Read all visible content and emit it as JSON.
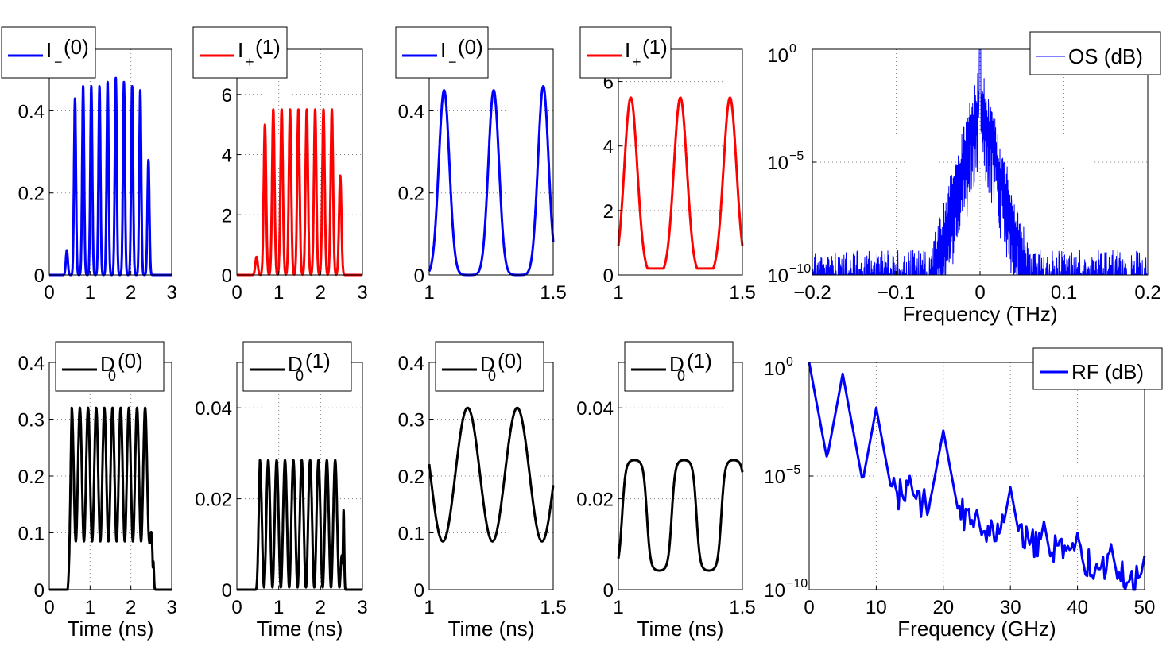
{
  "figure": {
    "background": "#ffffff"
  },
  "chart_data": [
    {
      "id": "p1",
      "type": "line",
      "row": 1,
      "xlabel": "",
      "ylabel": "",
      "xlim": [
        0,
        3
      ],
      "ylim": [
        0,
        0.55
      ],
      "xticks": [
        0,
        1,
        2,
        3
      ],
      "xtick_labels": [
        "0",
        "1",
        "2",
        "3"
      ],
      "yticks": [
        0,
        0.2,
        0.4
      ],
      "ytick_labels": [
        "0",
        "0.2",
        "0.4"
      ],
      "grid": true,
      "legend": {
        "text": "I_(0)",
        "main": "I",
        "sub": "−",
        "tail": "(0)",
        "color": "#0000ff",
        "position": "top-left"
      },
      "series": [
        {
          "name": "I_(0)",
          "color": "#0000ff",
          "kind": "pulses",
          "period": 0.2,
          "width": 0.05,
          "baseline": 0.0,
          "centers": [
            0.43,
            0.63,
            0.83,
            1.03,
            1.23,
            1.43,
            1.63,
            1.83,
            2.03,
            2.23,
            2.43
          ],
          "peaks": [
            0.06,
            0.43,
            0.46,
            0.46,
            0.46,
            0.47,
            0.48,
            0.47,
            0.46,
            0.45,
            0.28
          ],
          "troughs": [],
          "minval": 0.0
        }
      ]
    },
    {
      "id": "p2",
      "type": "line",
      "row": 1,
      "xlabel": "",
      "ylabel": "",
      "xlim": [
        0,
        3
      ],
      "ylim": [
        0,
        7.5
      ],
      "xticks": [
        0,
        1,
        2,
        3
      ],
      "xtick_labels": [
        "0",
        "1",
        "2",
        "3"
      ],
      "yticks": [
        0,
        2,
        4,
        6
      ],
      "ytick_labels": [
        "0",
        "2",
        "4",
        "6"
      ],
      "grid": true,
      "legend": {
        "text": "I+(1)",
        "main": "I",
        "sub": "+",
        "tail": "(1)",
        "color": "#ff0000",
        "position": "top-left"
      },
      "series": [
        {
          "name": "I+(1)",
          "color": "#ff0000",
          "kind": "pulses",
          "period": 0.2,
          "width": 0.06,
          "baseline": 0.0,
          "centers": [
            0.47,
            0.67,
            0.87,
            1.07,
            1.27,
            1.47,
            1.67,
            1.87,
            2.07,
            2.27,
            2.47
          ],
          "peaks": [
            0.6,
            5.0,
            5.5,
            5.5,
            5.5,
            5.5,
            5.5,
            5.5,
            5.5,
            5.5,
            3.3
          ],
          "troughs": [],
          "minval": 0.0
        }
      ]
    },
    {
      "id": "p3",
      "type": "line",
      "row": 1,
      "xlabel": "",
      "ylabel": "",
      "xlim": [
        1,
        1.5
      ],
      "ylim": [
        0,
        0.55
      ],
      "xticks": [
        1,
        1.5
      ],
      "xtick_labels": [
        "1",
        "1.5"
      ],
      "yticks": [
        0,
        0.2,
        0.4
      ],
      "ytick_labels": [
        "0",
        "0.2",
        "0.4"
      ],
      "grid": true,
      "legend": {
        "text": "I_(0)",
        "main": "I",
        "sub": "−",
        "tail": "(0)",
        "color": "#0000ff",
        "position": "top-left"
      },
      "series": [
        {
          "name": "I_(0)",
          "color": "#0000ff",
          "kind": "pulses",
          "period": 0.2,
          "width": 0.045,
          "baseline": 0.0,
          "centers": [
            1.06,
            1.26,
            1.46
          ],
          "peaks": [
            0.45,
            0.45,
            0.46
          ],
          "troughs": [],
          "minval": 0.0
        }
      ]
    },
    {
      "id": "p4",
      "type": "line",
      "row": 1,
      "xlabel": "",
      "ylabel": "",
      "xlim": [
        1,
        1.5
      ],
      "ylim": [
        0,
        7.0
      ],
      "xticks": [
        1,
        1.5
      ],
      "xtick_labels": [
        "1",
        "1.5"
      ],
      "yticks": [
        0,
        2,
        4,
        6
      ],
      "ytick_labels": [
        "0",
        "2",
        "4",
        "6"
      ],
      "grid": true,
      "legend": {
        "text": "I+(1)",
        "main": "I",
        "sub": "+",
        "tail": "(1)",
        "color": "#ff0000",
        "position": "top-left"
      },
      "series": [
        {
          "name": "I+(1)",
          "color": "#ff0000",
          "kind": "pulses",
          "period": 0.2,
          "width": 0.055,
          "baseline": 0.25,
          "centers": [
            1.05,
            1.25,
            1.45
          ],
          "peaks": [
            5.5,
            5.5,
            5.5
          ],
          "troughs": [],
          "minval": 0.2
        }
      ]
    },
    {
      "id": "p5",
      "type": "line",
      "row": 1,
      "xlabel": "Frequency (THz)",
      "ylabel": "",
      "xlim": [
        -0.2,
        0.2
      ],
      "ylim": [
        -10,
        0
      ],
      "yscale": "log",
      "xticks": [
        -0.2,
        -0.1,
        0,
        0.1,
        0.2
      ],
      "xtick_labels": [
        "−0.2",
        "−0.1",
        "0",
        "0.1",
        "0.2"
      ],
      "yticks": [
        0,
        -5,
        -10
      ],
      "ytick_labels": [
        {
          "base": "10",
          "exp": "0"
        },
        {
          "base": "10",
          "exp": "−5"
        },
        {
          "base": "10",
          "exp": "−10"
        }
      ],
      "grid": true,
      "legend": {
        "text": "OS (dB)",
        "main": "OS (dB)",
        "sub": "",
        "tail": "",
        "color": "#0000ff",
        "position": "top-right"
      },
      "series": [
        {
          "name": "OS (dB)",
          "color": "#0000ff",
          "kind": "spectrum",
          "thin": true,
          "comb_spacing": 0.005,
          "center": 0,
          "peak": 0,
          "floor": -8.9,
          "slope": 140,
          "noise": 1.3
        }
      ]
    },
    {
      "id": "p6",
      "type": "line",
      "row": 2,
      "xlabel": "Time (ns)",
      "ylabel": "",
      "xlim": [
        0,
        3
      ],
      "ylim": [
        0,
        0.4
      ],
      "xticks": [
        0,
        1,
        2,
        3
      ],
      "xtick_labels": [
        "0",
        "1",
        "2",
        "3"
      ],
      "yticks": [
        0,
        0.1,
        0.2,
        0.3,
        0.4
      ],
      "ytick_labels": [
        "0",
        "0.1",
        "0.2",
        "0.3",
        "0.4"
      ],
      "grid": true,
      "legend": {
        "text": "D0(0)",
        "main": "D",
        "sub": "0",
        "tail": "(0)",
        "color": "#000000",
        "position": "top-center"
      },
      "series": [
        {
          "name": "D0(0)",
          "color": "#000000",
          "kind": "envelope_osc",
          "start": 0.5,
          "end": 2.5,
          "period": 0.2,
          "high": 0.32,
          "low": 0.085,
          "first_peak": 0.2,
          "tail": 0.05
        }
      ]
    },
    {
      "id": "p7",
      "type": "line",
      "row": 2,
      "xlabel": "Time (ns)",
      "ylabel": "",
      "xlim": [
        0,
        3
      ],
      "ylim": [
        0,
        0.05
      ],
      "xticks": [
        0,
        1,
        2,
        3
      ],
      "xtick_labels": [
        "0",
        "1",
        "2",
        "3"
      ],
      "yticks": [
        0,
        0.02,
        0.04
      ],
      "ytick_labels": [
        "0",
        "0.02",
        "0.04"
      ],
      "grid": true,
      "legend": {
        "text": "D0(1)",
        "main": "D",
        "sub": "0",
        "tail": "(1)",
        "color": "#000000",
        "position": "top-center"
      },
      "series": [
        {
          "name": "D0(1)",
          "color": "#000000",
          "kind": "envelope_osc",
          "start": 0.5,
          "end": 2.5,
          "period": 0.2,
          "high": 0.0285,
          "low": 0.0005,
          "first_peak": 0.004,
          "tail": 0.0175
        }
      ]
    },
    {
      "id": "p8",
      "type": "line",
      "row": 2,
      "xlabel": "Time (ns)",
      "ylabel": "",
      "xlim": [
        1,
        1.5
      ],
      "ylim": [
        0,
        0.4
      ],
      "xticks": [
        1,
        1.5
      ],
      "xtick_labels": [
        "1",
        "1.5"
      ],
      "yticks": [
        0,
        0.1,
        0.2,
        0.3,
        0.4
      ],
      "ytick_labels": [
        "0",
        "0.1",
        "0.2",
        "0.3",
        "0.4"
      ],
      "grid": true,
      "legend": {
        "text": "D0(0)",
        "main": "D",
        "sub": "0",
        "tail": "(0)",
        "color": "#000000",
        "position": "top-center"
      },
      "series": [
        {
          "name": "D0(0)",
          "color": "#000000",
          "kind": "sine",
          "period": 0.2,
          "mid": 0.2025,
          "amp": 0.1175,
          "phase_peak": 1.155
        }
      ]
    },
    {
      "id": "p9",
      "type": "line",
      "row": 2,
      "xlabel": "Time (ns)",
      "ylabel": "",
      "xlim": [
        1,
        1.5
      ],
      "ylim": [
        0,
        0.05
      ],
      "xticks": [
        1,
        1.5
      ],
      "xtick_labels": [
        "1",
        "1.5"
      ],
      "yticks": [
        0,
        0.02,
        0.04
      ],
      "ytick_labels": [
        "0",
        "0.02",
        "0.04"
      ],
      "grid": true,
      "legend": {
        "text": "D0(1)",
        "main": "D",
        "sub": "0",
        "tail": "(1)",
        "color": "#000000",
        "position": "top-center"
      },
      "series": [
        {
          "name": "D0(1)",
          "color": "#000000",
          "kind": "flat_osc",
          "period": 0.2,
          "high": 0.0285,
          "low": 0.0042,
          "phase_peak": 1.065
        }
      ]
    },
    {
      "id": "p10",
      "type": "line",
      "row": 2,
      "xlabel": "Frequency (GHz)",
      "ylabel": "",
      "xlim": [
        0,
        50
      ],
      "ylim": [
        -10,
        0
      ],
      "yscale": "log",
      "xticks": [
        0,
        10,
        20,
        30,
        40,
        50
      ],
      "xtick_labels": [
        "0",
        "10",
        "20",
        "30",
        "40",
        "50"
      ],
      "yticks": [
        0,
        -5,
        -10
      ],
      "ytick_labels": [
        {
          "base": "10",
          "exp": "0"
        },
        {
          "base": "10",
          "exp": "−5"
        },
        {
          "base": "10",
          "exp": "−10"
        }
      ],
      "grid": true,
      "legend": {
        "text": "RF (dB)",
        "main": "RF (dB)",
        "sub": "",
        "tail": "",
        "color": "#0000ff",
        "position": "top-right"
      },
      "series": [
        {
          "name": "RF (dB)",
          "color": "#0000ff",
          "kind": "rf",
          "harmonics": [
            0,
            5,
            10,
            15,
            20,
            25,
            30,
            35,
            40,
            45,
            50
          ],
          "harmonic_levels": [
            0,
            -0.5,
            -2.0,
            -5.0,
            -3.0,
            -6.5,
            -5.5,
            -7.0,
            -7.5,
            -8.0,
            -8.5
          ]
        }
      ]
    }
  ]
}
